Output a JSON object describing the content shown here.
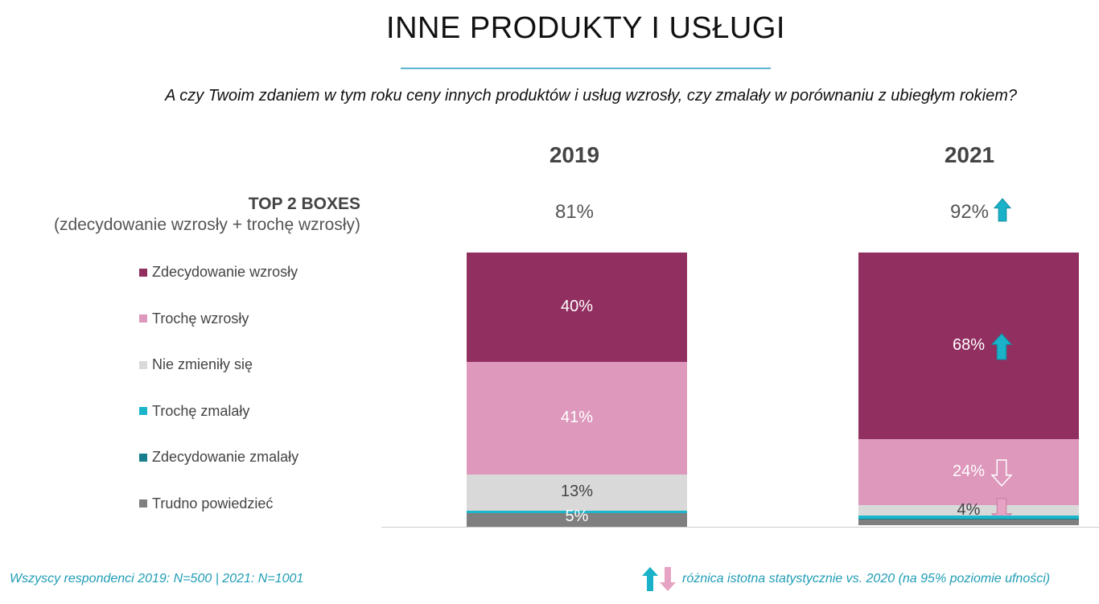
{
  "title": "INNE PRODUKTY I USŁUGI",
  "question": "A czy Twoim zdaniem w tym roku ceny innych produktów i usług wzrosły, czy zmalały w porównaniu z ubiegłym rokiem?",
  "top2": {
    "title": "TOP 2  BOXES",
    "subtitle": "(zdecydowanie wzrosły + trochę wzrosły)"
  },
  "colors": {
    "zdecydowanie_wzrosly": "#922f61",
    "troche_wzrosly": "#dd98bc",
    "nie_zmienily": "#d9d9d9",
    "troche_zmalaly": "#1cb6cc",
    "zdecydowanie_zmalaly": "#167e8c",
    "trudno": "#7f7f7f",
    "arrow_up": "#19b2c8",
    "arrow_down": "#e7a3c4"
  },
  "chart_data": {
    "type": "bar",
    "stacked": true,
    "categories": [
      "2019",
      "2021"
    ],
    "top2_values": [
      "81%",
      "92%"
    ],
    "top2_significance": [
      "",
      "up"
    ],
    "series": [
      {
        "name": "Zdecydowanie wzrosły",
        "values": [
          40,
          68
        ],
        "labels": [
          "40%",
          "68%"
        ],
        "significance": [
          "",
          "up"
        ],
        "label_color": "#ffffff"
      },
      {
        "name": "Trochę wzrosły",
        "values": [
          41,
          24
        ],
        "labels": [
          "41%",
          "24%"
        ],
        "significance": [
          "",
          "down"
        ],
        "label_color": "#ffffff"
      },
      {
        "name": "Nie zmieniły się",
        "values": [
          13,
          4
        ],
        "labels": [
          "13%",
          "4%"
        ],
        "significance": [
          "",
          "down"
        ],
        "label_color": "#444444"
      },
      {
        "name": "Trochę zmalały",
        "values": [
          1,
          1
        ],
        "labels": [
          "",
          ""
        ],
        "significance": [
          "",
          ""
        ],
        "label_color": "#444444"
      },
      {
        "name": "Zdecydowanie zmalały",
        "values": [
          0,
          0.5
        ],
        "labels": [
          "",
          ""
        ],
        "significance": [
          "",
          ""
        ],
        "label_color": "#444444"
      },
      {
        "name": "Trudno powiedzieć",
        "values": [
          5,
          2
        ],
        "labels": [
          "5%",
          ""
        ],
        "significance": [
          "",
          ""
        ],
        "label_color": "#ffffff"
      }
    ],
    "legend_position": "left",
    "grid": false
  },
  "footnote_left": "Wszyscy respondenci 2019: N=500 | 2021: N=1001",
  "footnote_right": "różnica istotna statystycznie vs. 2020 (na 95% poziomie ufności)"
}
